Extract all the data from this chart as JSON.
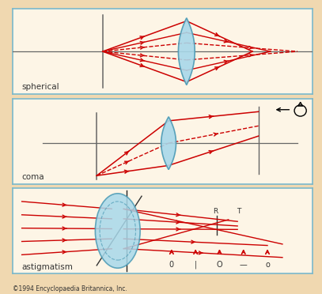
{
  "bg_color": "#f0d8b0",
  "panel_bg": "#fdf5e6",
  "ray_color": "#cc0000",
  "axis_color": "#666666",
  "lens_color": "#a8d8ea",
  "lens_edge_color": "#4a9ab5",
  "text_color": "#333333",
  "border_color": "#7ab8cc",
  "label_spherical": "spherical",
  "label_coma": "coma",
  "label_astigmatism": "astigmatism",
  "copyright": "©1994 Encyclopaedia Britannica, Inc.",
  "figsize": [
    4.07,
    3.72
  ],
  "dpi": 100
}
